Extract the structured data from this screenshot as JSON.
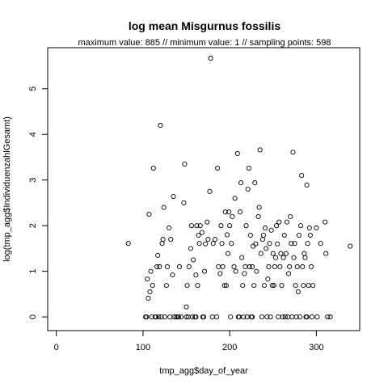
{
  "chart_data": {
    "type": "scatter",
    "title": "log mean Misgurnus fossilis",
    "subtitle": "maximum value: 885  //  minimum value: 1  // sampling points: 598",
    "xlabel": "tmp_agg$day_of_year",
    "ylabel": "log(tmp_agg$IndividuenzahlGesamt)",
    "xlim": [
      -10,
      350
    ],
    "ylim": [
      -0.3,
      5.9
    ],
    "x_ticks": [
      0,
      100,
      200,
      300
    ],
    "y_ticks": [
      0,
      1,
      2,
      3,
      4,
      5
    ],
    "grid": false,
    "marker": "open-circle",
    "points": [
      [
        83,
        1.61
      ],
      [
        103,
        0.0
      ],
      [
        104,
        0.0
      ],
      [
        105,
        0.83
      ],
      [
        106,
        0.41
      ],
      [
        107,
        2.25
      ],
      [
        108,
        0.55
      ],
      [
        109,
        1.0
      ],
      [
        110,
        0.0
      ],
      [
        111,
        0.69
      ],
      [
        112,
        3.26
      ],
      [
        114,
        0.0
      ],
      [
        115,
        0.0
      ],
      [
        116,
        1.1
      ],
      [
        117,
        1.35
      ],
      [
        118,
        0.0
      ],
      [
        119,
        1.1
      ],
      [
        120,
        4.2
      ],
      [
        121,
        0.0
      ],
      [
        122,
        1.61
      ],
      [
        123,
        1.7
      ],
      [
        124,
        2.4
      ],
      [
        125,
        0.0
      ],
      [
        127,
        0.69
      ],
      [
        128,
        1.1
      ],
      [
        130,
        1.95
      ],
      [
        131,
        0.0
      ],
      [
        132,
        1.7
      ],
      [
        134,
        0.92
      ],
      [
        135,
        2.64
      ],
      [
        136,
        0.0
      ],
      [
        138,
        0.0
      ],
      [
        140,
        0.0
      ],
      [
        141,
        0.0
      ],
      [
        142,
        1.1
      ],
      [
        144,
        0.0
      ],
      [
        147,
        2.5
      ],
      [
        148,
        3.35
      ],
      [
        150,
        0.0
      ],
      [
        150,
        0.22
      ],
      [
        151,
        0.69
      ],
      [
        152,
        0.0
      ],
      [
        153,
        1.1
      ],
      [
        155,
        1.5
      ],
      [
        156,
        2.0
      ],
      [
        157,
        0.0
      ],
      [
        158,
        1.25
      ],
      [
        160,
        0.0
      ],
      [
        161,
        0.92
      ],
      [
        162,
        2.0
      ],
      [
        163,
        0.69
      ],
      [
        164,
        1.79
      ],
      [
        165,
        1.61
      ],
      [
        166,
        2.0
      ],
      [
        168,
        1.85
      ],
      [
        170,
        0.0
      ],
      [
        171,
        1.0
      ],
      [
        172,
        1.6
      ],
      [
        174,
        2.08
      ],
      [
        175,
        1.7
      ],
      [
        177,
        2.75
      ],
      [
        178,
        5.67
      ],
      [
        180,
        0.0
      ],
      [
        181,
        1.61
      ],
      [
        183,
        1.7
      ],
      [
        185,
        0.0
      ],
      [
        186,
        3.26
      ],
      [
        187,
        1.1
      ],
      [
        189,
        0.95
      ],
      [
        190,
        2.0
      ],
      [
        191,
        1.61
      ],
      [
        192,
        1.1
      ],
      [
        194,
        0.69
      ],
      [
        195,
        2.3
      ],
      [
        196,
        0.69
      ],
      [
        197,
        1.8
      ],
      [
        198,
        1.39
      ],
      [
        199,
        2.3
      ],
      [
        200,
        2.0
      ],
      [
        201,
        0.0
      ],
      [
        202,
        1.61
      ],
      [
        203,
        2.2
      ],
      [
        205,
        1.1
      ],
      [
        206,
        2.6
      ],
      [
        207,
        1.0
      ],
      [
        209,
        3.58
      ],
      [
        210,
        0.0
      ],
      [
        211,
        0.0
      ],
      [
        212,
        2.3
      ],
      [
        213,
        2.94
      ],
      [
        214,
        1.3
      ],
      [
        215,
        0.69
      ],
      [
        216,
        0.0
      ],
      [
        217,
        0.95
      ],
      [
        218,
        1.1
      ],
      [
        219,
        2.0
      ],
      [
        220,
        0.0
      ],
      [
        221,
        2.8
      ],
      [
        222,
        3.26
      ],
      [
        223,
        1.1
      ],
      [
        224,
        1.79
      ],
      [
        225,
        0.0
      ],
      [
        226,
        1.1
      ],
      [
        227,
        1.55
      ],
      [
        228,
        0.69
      ],
      [
        229,
        2.94
      ],
      [
        230,
        1.6
      ],
      [
        231,
        1.0
      ],
      [
        233,
        2.2
      ],
      [
        234,
        2.4
      ],
      [
        235,
        3.66
      ],
      [
        236,
        1.39
      ],
      [
        237,
        0.0
      ],
      [
        238,
        1.7
      ],
      [
        239,
        1.79
      ],
      [
        240,
        0.69
      ],
      [
        241,
        1.95
      ],
      [
        242,
        1.5
      ],
      [
        243,
        0.0
      ],
      [
        244,
        0.83
      ],
      [
        245,
        1.1
      ],
      [
        246,
        1.61
      ],
      [
        247,
        0.0
      ],
      [
        248,
        1.9
      ],
      [
        249,
        0.69
      ],
      [
        250,
        1.39
      ],
      [
        251,
        0.69
      ],
      [
        252,
        1.1
      ],
      [
        253,
        1.3
      ],
      [
        254,
        2.0
      ],
      [
        255,
        1.6
      ],
      [
        256,
        0.0
      ],
      [
        257,
        2.08
      ],
      [
        258,
        1.1
      ],
      [
        259,
        1.39
      ],
      [
        260,
        0.69
      ],
      [
        261,
        0.0
      ],
      [
        262,
        1.3
      ],
      [
        263,
        1.79
      ],
      [
        264,
        0.0
      ],
      [
        265,
        1.39
      ],
      [
        266,
        2.08
      ],
      [
        267,
        0.0
      ],
      [
        268,
        0.95
      ],
      [
        269,
        1.1
      ],
      [
        270,
        2.2
      ],
      [
        271,
        1.61
      ],
      [
        272,
        0.0
      ],
      [
        273,
        3.61
      ],
      [
        274,
        1.3
      ],
      [
        275,
        1.61
      ],
      [
        276,
        0.69
      ],
      [
        277,
        0.0
      ],
      [
        278,
        1.1
      ],
      [
        279,
        0.55
      ],
      [
        280,
        1.79
      ],
      [
        281,
        0.0
      ],
      [
        282,
        2.0
      ],
      [
        283,
        3.1
      ],
      [
        284,
        1.1
      ],
      [
        285,
        0.69
      ],
      [
        286,
        1.39
      ],
      [
        287,
        1.3
      ],
      [
        288,
        0.0
      ],
      [
        289,
        2.89
      ],
      [
        290,
        1.61
      ],
      [
        291,
        0.69
      ],
      [
        292,
        1.95
      ],
      [
        293,
        1.79
      ],
      [
        294,
        1.1
      ],
      [
        295,
        0.0
      ],
      [
        296,
        0.69
      ],
      [
        300,
        1.95
      ],
      [
        301,
        0.0
      ],
      [
        305,
        1.61
      ],
      [
        310,
        2.08
      ],
      [
        311,
        1.39
      ],
      [
        313,
        0.0
      ],
      [
        316,
        0.0
      ],
      [
        339,
        1.55
      ],
      [
        161,
        0.0
      ],
      [
        169,
        0.0
      ],
      [
        226,
        0.0
      ],
      [
        289,
        0.0
      ]
    ]
  }
}
